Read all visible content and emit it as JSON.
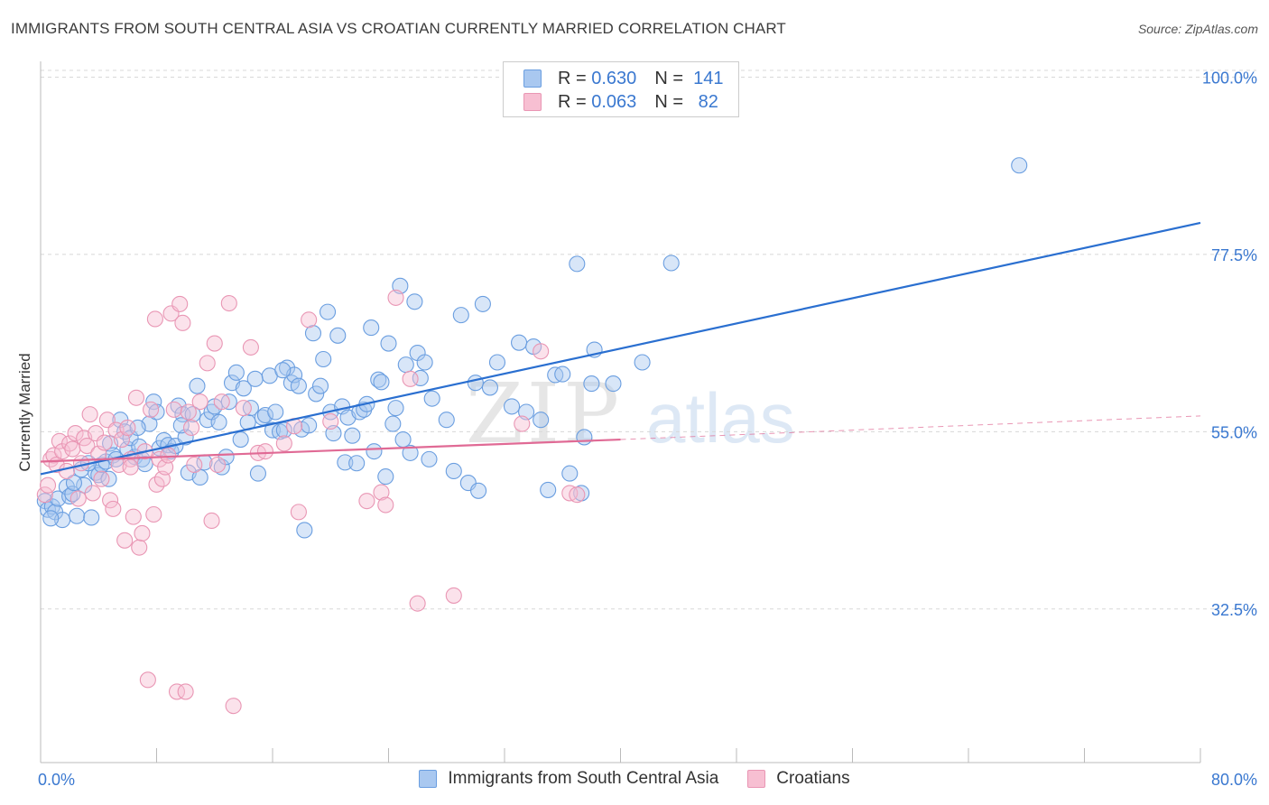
{
  "header": {
    "title": "IMMIGRANTS FROM SOUTH CENTRAL ASIA VS CROATIAN CURRENTLY MARRIED CORRELATION CHART",
    "source": "Source: ZipAtlas.com"
  },
  "legend": {
    "rows": [
      {
        "r_label": "R =",
        "r_value": "0.630",
        "n_label": "N =",
        "n_value": "141"
      },
      {
        "r_label": "R =",
        "r_value": "0.063",
        "n_label": "N =",
        "n_value": "82"
      }
    ]
  },
  "watermark": {
    "zip": "ZIP",
    "atlas": "atlas"
  },
  "colors": {
    "blue_fill": "#a9c8f0",
    "blue_edge": "#6a9ee0",
    "blue_line": "#2a6fd0",
    "pink_fill": "#f7bfd2",
    "pink_edge": "#e996b4",
    "pink_line": "#e06a95",
    "axis_text": "#3a78d0",
    "grid": "#d8d8d8"
  },
  "chart_data": {
    "type": "scatter",
    "title": "IMMIGRANTS FROM SOUTH CENTRAL ASIA VS CROATIAN CURRENTLY MARRIED CORRELATION CHART",
    "xlabel": "",
    "ylabel": "Currently Married",
    "xlim": [
      0,
      80
    ],
    "ylim": [
      13,
      102
    ],
    "x_tick_labels": [
      {
        "value": 0,
        "label": "0.0%"
      },
      {
        "value": 80,
        "label": "80.0%"
      }
    ],
    "y_tick_labels": [
      {
        "value": 100,
        "label": "100.0%"
      },
      {
        "value": 77.5,
        "label": "77.5%"
      },
      {
        "value": 55,
        "label": "55.0%"
      },
      {
        "value": 32.5,
        "label": "32.5%"
      }
    ],
    "x_minor_ticks": [
      0,
      8,
      16,
      24,
      32,
      40,
      48,
      56,
      64,
      72,
      80
    ],
    "series": [
      {
        "name": "Immigrants from South Central Asia",
        "color": "blue",
        "trend": {
          "x0": 0,
          "y0": 49.6,
          "x1": 80,
          "y1": 81.5,
          "dashed_to": null
        },
        "points": [
          [
            0.3,
            46.2
          ],
          [
            0.5,
            45.1
          ],
          [
            0.8,
            45.5
          ],
          [
            1.0,
            44.8
          ],
          [
            1.5,
            43.8
          ],
          [
            1.2,
            46.5
          ],
          [
            1.8,
            48.0
          ],
          [
            2.0,
            46.8
          ],
          [
            2.2,
            47.1
          ],
          [
            2.5,
            44.3
          ],
          [
            2.8,
            50.2
          ],
          [
            3.0,
            48.2
          ],
          [
            3.5,
            44.1
          ],
          [
            3.8,
            49.8
          ],
          [
            4.0,
            49.5
          ],
          [
            4.2,
            50.8
          ],
          [
            4.5,
            51.2
          ],
          [
            4.8,
            53.5
          ],
          [
            5.0,
            52.0
          ],
          [
            5.2,
            51.5
          ],
          [
            5.5,
            56.5
          ],
          [
            5.8,
            55.0
          ],
          [
            6.0,
            52.8
          ],
          [
            6.2,
            54.2
          ],
          [
            6.5,
            51.8
          ],
          [
            6.8,
            53.1
          ],
          [
            7.0,
            51.5
          ],
          [
            7.2,
            50.9
          ],
          [
            7.5,
            56.0
          ],
          [
            7.8,
            58.8
          ],
          [
            8.0,
            57.5
          ],
          [
            8.2,
            52.9
          ],
          [
            8.5,
            53.9
          ],
          [
            8.8,
            53.3
          ],
          [
            9.0,
            52.5
          ],
          [
            9.3,
            53.2
          ],
          [
            9.5,
            58.3
          ],
          [
            9.8,
            57.2
          ],
          [
            10.0,
            54.3
          ],
          [
            10.2,
            49.8
          ],
          [
            10.5,
            57.2
          ],
          [
            10.8,
            60.8
          ],
          [
            11.0,
            49.2
          ],
          [
            11.3,
            51.1
          ],
          [
            11.5,
            56.5
          ],
          [
            11.8,
            57.5
          ],
          [
            12.0,
            58.2
          ],
          [
            12.3,
            56.2
          ],
          [
            12.5,
            50.5
          ],
          [
            12.8,
            51.8
          ],
          [
            13.0,
            58.8
          ],
          [
            13.2,
            61.2
          ],
          [
            13.5,
            62.5
          ],
          [
            13.8,
            54.0
          ],
          [
            14.0,
            60.5
          ],
          [
            14.3,
            56.2
          ],
          [
            14.5,
            58.0
          ],
          [
            14.8,
            61.7
          ],
          [
            15.0,
            49.7
          ],
          [
            15.3,
            56.8
          ],
          [
            15.5,
            57.1
          ],
          [
            15.8,
            62.1
          ],
          [
            16.0,
            55.2
          ],
          [
            16.2,
            57.5
          ],
          [
            16.5,
            55.0
          ],
          [
            16.8,
            55.2
          ],
          [
            17.0,
            63.1
          ],
          [
            17.3,
            61.2
          ],
          [
            17.5,
            62.2
          ],
          [
            17.8,
            60.8
          ],
          [
            18.0,
            55.3
          ],
          [
            18.2,
            42.5
          ],
          [
            18.5,
            55.8
          ],
          [
            18.8,
            67.5
          ],
          [
            19.0,
            59.8
          ],
          [
            19.3,
            60.8
          ],
          [
            19.5,
            64.2
          ],
          [
            19.8,
            70.2
          ],
          [
            20.0,
            57.5
          ],
          [
            20.2,
            54.8
          ],
          [
            20.5,
            67.2
          ],
          [
            20.8,
            58.2
          ],
          [
            21.0,
            51.1
          ],
          [
            21.2,
            56.8
          ],
          [
            21.5,
            54.5
          ],
          [
            21.8,
            51.0
          ],
          [
            22.0,
            57.5
          ],
          [
            22.3,
            57.8
          ],
          [
            22.5,
            58.5
          ],
          [
            22.8,
            68.2
          ],
          [
            23.0,
            52.5
          ],
          [
            23.3,
            61.6
          ],
          [
            23.5,
            61.3
          ],
          [
            23.8,
            49.3
          ],
          [
            24.0,
            66.2
          ],
          [
            24.3,
            56.0
          ],
          [
            24.5,
            58.0
          ],
          [
            24.8,
            73.5
          ],
          [
            25.0,
            54.0
          ],
          [
            25.2,
            63.5
          ],
          [
            25.5,
            52.3
          ],
          [
            25.8,
            71.5
          ],
          [
            26.0,
            65.0
          ],
          [
            26.2,
            61.8
          ],
          [
            26.5,
            63.8
          ],
          [
            26.8,
            51.5
          ],
          [
            27.0,
            59.2
          ],
          [
            28.0,
            56.5
          ],
          [
            28.5,
            50.0
          ],
          [
            29.0,
            69.8
          ],
          [
            29.5,
            48.5
          ],
          [
            30.0,
            61.2
          ],
          [
            30.2,
            47.5
          ],
          [
            30.5,
            71.2
          ],
          [
            31.0,
            60.6
          ],
          [
            31.5,
            63.8
          ],
          [
            32.5,
            58.2
          ],
          [
            33.0,
            66.3
          ],
          [
            33.5,
            57.5
          ],
          [
            34.0,
            65.8
          ],
          [
            34.5,
            56.5
          ],
          [
            35.0,
            47.6
          ],
          [
            35.5,
            62.2
          ],
          [
            36.0,
            62.3
          ],
          [
            36.5,
            49.7
          ],
          [
            37.0,
            76.3
          ],
          [
            37.3,
            47.2
          ],
          [
            37.5,
            54.3
          ],
          [
            38.0,
            61.1
          ],
          [
            38.2,
            65.4
          ],
          [
            39.5,
            61.1
          ],
          [
            41.5,
            63.8
          ],
          [
            43.5,
            76.4
          ],
          [
            67.5,
            88.8
          ],
          [
            0.7,
            44.0
          ],
          [
            2.3,
            48.5
          ],
          [
            3.3,
            51.0
          ],
          [
            4.7,
            49.0
          ],
          [
            6.7,
            55.5
          ],
          [
            9.7,
            55.8
          ],
          [
            16.7,
            62.8
          ]
        ]
      },
      {
        "name": "Croatians",
        "color": "pink",
        "trend": {
          "x0": 0,
          "y0": 51.2,
          "x1": 40,
          "y1": 54.0,
          "dashed_to": {
            "x": 80,
            "y": 57.0
          }
        },
        "points": [
          [
            0.3,
            47.0
          ],
          [
            0.5,
            48.2
          ],
          [
            0.7,
            51.5
          ],
          [
            0.9,
            52.0
          ],
          [
            1.1,
            50.8
          ],
          [
            1.3,
            53.8
          ],
          [
            1.5,
            52.5
          ],
          [
            1.8,
            50.0
          ],
          [
            2.0,
            53.5
          ],
          [
            2.2,
            52.8
          ],
          [
            2.4,
            54.8
          ],
          [
            2.6,
            46.5
          ],
          [
            2.8,
            51.0
          ],
          [
            3.0,
            54.2
          ],
          [
            3.2,
            53.2
          ],
          [
            3.4,
            57.2
          ],
          [
            3.6,
            47.2
          ],
          [
            3.8,
            54.8
          ],
          [
            4.0,
            52.2
          ],
          [
            4.2,
            49.0
          ],
          [
            4.4,
            53.6
          ],
          [
            4.6,
            56.5
          ],
          [
            4.8,
            46.3
          ],
          [
            5.0,
            45.2
          ],
          [
            5.2,
            55.2
          ],
          [
            5.4,
            50.8
          ],
          [
            5.6,
            54.0
          ],
          [
            5.8,
            41.2
          ],
          [
            6.0,
            55.5
          ],
          [
            6.2,
            51.5
          ],
          [
            6.4,
            44.2
          ],
          [
            6.6,
            59.3
          ],
          [
            6.8,
            40.3
          ],
          [
            7.0,
            42.1
          ],
          [
            7.2,
            52.5
          ],
          [
            7.4,
            23.5
          ],
          [
            7.6,
            57.8
          ],
          [
            7.8,
            44.5
          ],
          [
            7.9,
            69.3
          ],
          [
            8.0,
            48.3
          ],
          [
            8.2,
            51.5
          ],
          [
            8.4,
            49.0
          ],
          [
            8.6,
            50.5
          ],
          [
            8.8,
            52.0
          ],
          [
            9.0,
            70.0
          ],
          [
            9.2,
            57.8
          ],
          [
            9.4,
            22.0
          ],
          [
            9.6,
            71.2
          ],
          [
            9.8,
            68.8
          ],
          [
            10.0,
            22.0
          ],
          [
            10.2,
            57.5
          ],
          [
            10.4,
            55.5
          ],
          [
            10.6,
            50.8
          ],
          [
            11.0,
            58.8
          ],
          [
            11.5,
            63.7
          ],
          [
            11.8,
            43.7
          ],
          [
            12.0,
            66.2
          ],
          [
            12.2,
            50.8
          ],
          [
            12.5,
            58.8
          ],
          [
            13.0,
            71.3
          ],
          [
            13.3,
            20.2
          ],
          [
            14.0,
            58.0
          ],
          [
            14.5,
            65.7
          ],
          [
            15.0,
            52.3
          ],
          [
            15.5,
            52.5
          ],
          [
            16.8,
            53.5
          ],
          [
            17.5,
            55.7
          ],
          [
            17.8,
            44.8
          ],
          [
            18.5,
            69.2
          ],
          [
            20.0,
            56.3
          ],
          [
            22.5,
            46.2
          ],
          [
            23.5,
            47.3
          ],
          [
            23.8,
            45.7
          ],
          [
            24.5,
            72.0
          ],
          [
            25.5,
            61.7
          ],
          [
            26.0,
            33.2
          ],
          [
            28.5,
            34.2
          ],
          [
            33.2,
            56.0
          ],
          [
            34.5,
            65.2
          ],
          [
            36.5,
            47.2
          ],
          [
            37.0,
            47.0
          ],
          [
            6.2,
            50.5
          ]
        ]
      }
    ]
  },
  "bottom_legend": {
    "items": [
      {
        "label": "Immigrants from South Central Asia"
      },
      {
        "label": "Croatians"
      }
    ]
  }
}
